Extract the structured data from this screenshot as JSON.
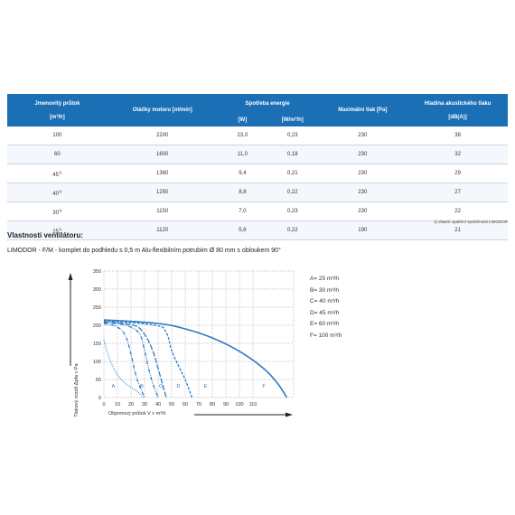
{
  "table": {
    "headers": {
      "flow": "Jmenovitý průtok",
      "flow_unit": "[m³/h]",
      "speed": "Otáčky motoru [ot/min]",
      "energy": "Spotřeba energie",
      "energy_w": "[W]",
      "energy_wm": "[W/m³/h]",
      "pressure": "Maximální tlak [Pa]",
      "noise": "Hladina akustického tlaku",
      "noise_unit": "[dB(A)]"
    },
    "rows": [
      {
        "flow": "100",
        "sup": "",
        "speed": "2200",
        "w": "23,0",
        "wm": "0,23",
        "pa": "230",
        "db": "38"
      },
      {
        "flow": "60",
        "sup": "",
        "speed": "1600",
        "w": "11,0",
        "wm": "0,18",
        "pa": "230",
        "db": "32"
      },
      {
        "flow": "45",
        "sup": "1)",
        "speed": "1360",
        "w": "9,4",
        "wm": "0,21",
        "pa": "230",
        "db": "29"
      },
      {
        "flow": "40",
        "sup": "1)",
        "speed": "1250",
        "w": "8,8",
        "wm": "0,22",
        "pa": "230",
        "db": "27"
      },
      {
        "flow": "30",
        "sup": "1)",
        "speed": "1150",
        "w": "7,0",
        "wm": "0,23",
        "pa": "230",
        "db": "22"
      },
      {
        "flow": "25",
        "sup": "1)",
        "speed": "1120",
        "w": "5,6",
        "wm": "0,22",
        "pa": "190",
        "db": "21"
      }
    ],
    "footnote": "1) vlastní opatření společnosti LIMODOR"
  },
  "section_title": "Vlastnosti ventilátoru:",
  "subtitle": "LIMODOR - F/M - komplet do podhledu s 0,5 m Alu-flexibilním potrubím Ø 80 mm s obloukem 90°",
  "colors": {
    "header": "#1a6fb5",
    "curve": "#2b7bc4",
    "grid": "#9a9a9a"
  },
  "legend": [
    {
      "key": "A",
      "text": "A= 25 m³/h"
    },
    {
      "key": "B",
      "text": "B= 30 m³/h"
    },
    {
      "key": "C",
      "text": "C= 40 m³/h"
    },
    {
      "key": "D",
      "text": "D= 45 m³/h"
    },
    {
      "key": "E",
      "text": "E= 60 m³/h"
    },
    {
      "key": "F",
      "text": "F= 100 m³/h"
    }
  ],
  "chart_data": {
    "type": "line",
    "title": "",
    "xlabel": "Objemový průtok V v m³/h",
    "ylabel": "Tlakový rozdíl Δpfa v Pa",
    "xlim": [
      0,
      140
    ],
    "ylim": [
      0,
      350
    ],
    "xticks": [
      0,
      10,
      20,
      30,
      40,
      50,
      60,
      70,
      80,
      90,
      100,
      110
    ],
    "xtick_labels": [
      "0",
      "10",
      "20",
      "30",
      "40",
      "50",
      "60",
      "70",
      "80",
      "90",
      "100",
      "110"
    ],
    "yticks": [
      0,
      50,
      100,
      150,
      200,
      250,
      300,
      350
    ],
    "ytick_labels": [
      "0",
      "50",
      "100",
      "150",
      "200",
      "250",
      "300",
      "350"
    ],
    "series": [
      {
        "name": "A",
        "dash": "dot",
        "points": [
          [
            0,
            160
          ],
          [
            3,
            120
          ],
          [
            8,
            75
          ],
          [
            14,
            45
          ],
          [
            20,
            28
          ],
          [
            25,
            16
          ],
          [
            29,
            0
          ]
        ],
        "label_at": [
          7,
          27
        ]
      },
      {
        "name": "B",
        "dash": "dashdot",
        "points": [
          [
            0,
            205
          ],
          [
            10,
            195
          ],
          [
            16,
            170
          ],
          [
            20,
            120
          ],
          [
            23,
            70
          ],
          [
            26,
            35
          ],
          [
            30,
            0
          ]
        ],
        "label_at": [
          28,
          27
        ]
      },
      {
        "name": "C",
        "dash": "dashdotdot",
        "points": [
          [
            0,
            208
          ],
          [
            16,
            200
          ],
          [
            26,
            178
          ],
          [
            30,
            130
          ],
          [
            33,
            80
          ],
          [
            36,
            40
          ],
          [
            40,
            0
          ]
        ],
        "label_at": [
          42,
          27
        ]
      },
      {
        "name": "D",
        "dash": "longdash",
        "points": [
          [
            0,
            210
          ],
          [
            22,
            200
          ],
          [
            30,
            175
          ],
          [
            36,
            130
          ],
          [
            40,
            80
          ],
          [
            43,
            40
          ],
          [
            46,
            0
          ]
        ],
        "label_at": [
          55,
          27
        ]
      },
      {
        "name": "E",
        "dash": "dash",
        "points": [
          [
            0,
            213
          ],
          [
            38,
            200
          ],
          [
            46,
            180
          ],
          [
            50,
            130
          ],
          [
            56,
            80
          ],
          [
            60,
            50
          ],
          [
            65,
            0
          ]
        ],
        "label_at": [
          75,
          27
        ]
      },
      {
        "name": "F",
        "dash": "solid",
        "points": [
          [
            0,
            215
          ],
          [
            40,
            205
          ],
          [
            60,
            190
          ],
          [
            80,
            165
          ],
          [
            100,
            128
          ],
          [
            118,
            80
          ],
          [
            128,
            40
          ],
          [
            135,
            0
          ]
        ],
        "label_at": [
          118,
          27
        ]
      }
    ]
  }
}
